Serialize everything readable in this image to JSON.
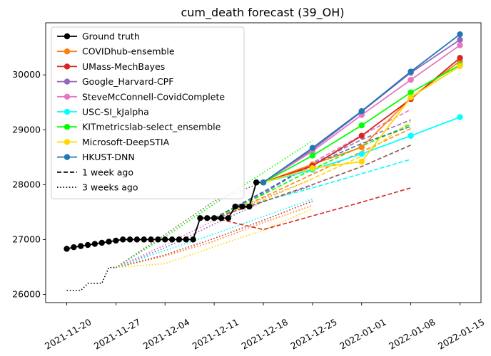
{
  "chart_data": {
    "type": "line",
    "title": "cum_death forecast (39_OH)",
    "xlabel": "",
    "ylabel": "",
    "x_range": [
      "2021-11-17",
      "2022-01-18"
    ],
    "y_range": [
      25850,
      30950
    ],
    "x_ticks": [
      "2021-11-20",
      "2021-11-27",
      "2021-12-04",
      "2021-12-11",
      "2021-12-18",
      "2021-12-25",
      "2022-01-01",
      "2022-01-08",
      "2022-01-15"
    ],
    "y_ticks": [
      26000,
      27000,
      28000,
      29000,
      30000
    ],
    "grid": false,
    "legend_position": "top-left",
    "legend": [
      {
        "label": "Ground truth",
        "color": "#000000",
        "style": "solid",
        "marker": true
      },
      {
        "label": "COVIDhub-ensemble",
        "color": "#ff7f0e",
        "style": "solid",
        "marker": true
      },
      {
        "label": "UMass-MechBayes",
        "color": "#d62728",
        "style": "solid",
        "marker": true
      },
      {
        "label": "Google_Harvard-CPF",
        "color": "#9467bd",
        "style": "solid",
        "marker": true
      },
      {
        "label": "SteveMcConnell-CovidComplete",
        "color": "#e377c2",
        "style": "solid",
        "marker": true
      },
      {
        "label": "USC-SI_kJalpha",
        "color": "#00ffff",
        "style": "solid",
        "marker": true
      },
      {
        "label": "KITmetricslab-select_ensemble",
        "color": "#00ff00",
        "style": "solid",
        "marker": true
      },
      {
        "label": "Microsoft-DeepSTIA",
        "color": "#ffd700",
        "style": "solid",
        "marker": true
      },
      {
        "label": "HKUST-DNN",
        "color": "#1f77b4",
        "style": "solid",
        "marker": true
      },
      {
        "label": "1 week ago",
        "color": "#000000",
        "style": "dashed",
        "marker": false
      },
      {
        "label": "3 weeks ago",
        "color": "#000000",
        "style": "dotted",
        "marker": false
      }
    ],
    "series": [
      {
        "name": "Ground truth",
        "color": "#000000",
        "style": "solid",
        "marker": true,
        "x": [
          "2021-11-20",
          "2021-11-21",
          "2021-11-22",
          "2021-11-23",
          "2021-11-24",
          "2021-11-25",
          "2021-11-26",
          "2021-11-27",
          "2021-11-28",
          "2021-11-29",
          "2021-11-30",
          "2021-12-01",
          "2021-12-02",
          "2021-12-03",
          "2021-12-04",
          "2021-12-05",
          "2021-12-06",
          "2021-12-07",
          "2021-12-08",
          "2021-12-09",
          "2021-12-10",
          "2021-12-11",
          "2021-12-12",
          "2021-12-13",
          "2021-12-14",
          "2021-12-15",
          "2021-12-16",
          "2021-12-17",
          "2021-12-18"
        ],
        "y": [
          26830,
          26860,
          26880,
          26900,
          26920,
          26940,
          26960,
          26980,
          27000,
          27000,
          27000,
          27000,
          27000,
          27000,
          27000,
          27000,
          27000,
          27000,
          27000,
          27390,
          27390,
          27390,
          27390,
          27390,
          27600,
          27600,
          27600,
          28040,
          28040
        ]
      },
      {
        "name": "3 weeks ago",
        "color": "#000000",
        "style": "dotted",
        "marker": false,
        "x": [
          "2021-11-20",
          "2021-11-21",
          "2021-11-22",
          "2021-11-23",
          "2021-11-24",
          "2021-11-25",
          "2021-11-26",
          "2021-11-27"
        ],
        "y": [
          26070,
          26070,
          26070,
          26200,
          26200,
          26200,
          26490,
          26490
        ]
      },
      {
        "name": "COVIDhub-ensemble",
        "color": "#ff7f0e",
        "style": "solid",
        "marker": true,
        "x": [
          "2021-12-18",
          "2021-12-25",
          "2022-01-01",
          "2022-01-08",
          "2022-01-15"
        ],
        "y": [
          28040,
          28370,
          28680,
          29580,
          30250
        ]
      },
      {
        "name": "UMass-MechBayes",
        "color": "#d62728",
        "style": "solid",
        "marker": true,
        "x": [
          "2021-12-18",
          "2021-12-25",
          "2022-01-01",
          "2022-01-08",
          "2022-01-15"
        ],
        "y": [
          28040,
          28340,
          28890,
          29560,
          30310
        ]
      },
      {
        "name": "Google_Harvard-CPF",
        "color": "#9467bd",
        "style": "solid",
        "marker": true,
        "x": [
          "2021-12-18",
          "2021-12-25",
          "2022-01-01",
          "2022-01-08",
          "2022-01-15"
        ],
        "y": [
          28040,
          28640,
          29330,
          30040,
          30640
        ]
      },
      {
        "name": "SteveMcConnell-CovidComplete",
        "color": "#e377c2",
        "style": "solid",
        "marker": true,
        "x": [
          "2021-12-18",
          "2021-12-25",
          "2022-01-01",
          "2022-01-08",
          "2022-01-15"
        ],
        "y": [
          28040,
          28610,
          29270,
          29910,
          30540
        ]
      },
      {
        "name": "USC-SI_kJalpha",
        "color": "#00ffff",
        "style": "solid",
        "marker": true,
        "x": [
          "2021-12-18",
          "2021-12-25",
          "2022-01-01",
          "2022-01-08",
          "2022-01-15"
        ],
        "y": [
          28040,
          28270,
          28560,
          28890,
          29230
        ]
      },
      {
        "name": "KITmetricslab-select_ensemble",
        "color": "#00ff00",
        "style": "solid",
        "marker": true,
        "x": [
          "2021-12-18",
          "2021-12-25",
          "2022-01-01",
          "2022-01-08",
          "2022-01-15"
        ],
        "y": [
          28040,
          28530,
          29080,
          29680,
          30180
        ]
      },
      {
        "name": "Microsoft-DeepSTIA",
        "color": "#ffd700",
        "style": "solid",
        "marker": true,
        "x": [
          "2021-12-18",
          "2021-12-25",
          "2022-01-01",
          "2022-01-08",
          "2022-01-15"
        ],
        "y": [
          28040,
          28300,
          28420,
          29590,
          30160
        ]
      },
      {
        "name": "HKUST-DNN",
        "color": "#1f77b4",
        "style": "solid",
        "marker": true,
        "x": [
          "2021-12-18",
          "2021-12-25",
          "2022-01-01",
          "2022-01-08",
          "2022-01-15"
        ],
        "y": [
          28040,
          28670,
          29340,
          30060,
          30740
        ]
      },
      {
        "name": "COVIDhub-ensemble (1 week ago)",
        "color": "#ff7f0e",
        "style": "dashed",
        "marker": false,
        "x": [
          "2021-12-11",
          "2021-12-18",
          "2021-12-25",
          "2022-01-01",
          "2022-01-08"
        ],
        "y": [
          27390,
          27770,
          28190,
          28600,
          29020
        ]
      },
      {
        "name": "UMass-MechBayes (1 week ago)",
        "color": "#d62728",
        "style": "dashed",
        "marker": false,
        "x": [
          "2021-12-11",
          "2021-12-18",
          "2021-12-25",
          "2022-01-01",
          "2022-01-08"
        ],
        "y": [
          27390,
          27180,
          27430,
          27680,
          27940
        ]
      },
      {
        "name": "Google_Harvard-CPF (1 week ago)",
        "color": "#9467bd",
        "style": "dashed",
        "marker": false,
        "x": [
          "2021-12-11",
          "2021-12-18",
          "2021-12-25",
          "2022-01-01",
          "2022-01-08"
        ],
        "y": [
          27390,
          27840,
          28380,
          28820,
          29180
        ]
      },
      {
        "name": "SteveMcConnell-CovidComplete (1 week ago)",
        "color": "#e377c2",
        "style": "dashed",
        "marker": false,
        "x": [
          "2021-12-11",
          "2021-12-18",
          "2021-12-25",
          "2022-01-01",
          "2022-01-08"
        ],
        "y": [
          27390,
          27860,
          28400,
          28900,
          29370
        ]
      },
      {
        "name": "USC-SI_kJalpha (1 week ago)",
        "color": "#00ffff",
        "style": "dashed",
        "marker": false,
        "x": [
          "2021-12-11",
          "2021-12-18",
          "2021-12-25",
          "2022-01-01",
          "2022-01-08"
        ],
        "y": [
          27390,
          27700,
          27940,
          28200,
          28460
        ]
      },
      {
        "name": "KITmetricslab-select_ensemble (1 week ago)",
        "color": "#00ff00",
        "style": "dashed",
        "marker": false,
        "x": [
          "2021-12-11",
          "2021-12-18",
          "2021-12-25",
          "2022-01-01",
          "2022-01-08"
        ],
        "y": [
          27390,
          27820,
          28280,
          28700,
          29100
        ]
      },
      {
        "name": "Microsoft-DeepSTIA (1 week ago)",
        "color": "#ffd700",
        "style": "dashed",
        "marker": false,
        "x": [
          "2021-12-11",
          "2021-12-18",
          "2021-12-25",
          "2022-01-01",
          "2022-01-08"
        ],
        "y": [
          27390,
          27720,
          28110,
          28520,
          29150
        ]
      },
      {
        "name": "HKUST-DNN (1 week ago)",
        "color": "#1f77b4",
        "style": "dashed",
        "marker": false,
        "x": [
          "2021-12-11",
          "2021-12-18",
          "2021-12-25",
          "2022-01-01",
          "2022-01-08"
        ],
        "y": [
          27390,
          27870,
          28360,
          28750,
          29060
        ]
      },
      {
        "name": "Brown (1 week ago)",
        "color": "#8c564b",
        "style": "dashed",
        "marker": false,
        "x": [
          "2021-12-11",
          "2021-12-18",
          "2021-12-25",
          "2022-01-01",
          "2022-01-08"
        ],
        "y": [
          27390,
          27690,
          28000,
          28330,
          28720
        ]
      },
      {
        "name": "COVIDhub-ensemble (3 weeks ago)",
        "color": "#ff7f0e",
        "style": "dotted",
        "marker": false,
        "x": [
          "2021-11-27",
          "2021-12-04",
          "2021-12-11",
          "2021-12-18",
          "2021-12-25"
        ],
        "y": [
          26490,
          26700,
          26970,
          27310,
          27620
        ]
      },
      {
        "name": "UMass-MechBayes (3 weeks ago)",
        "color": "#d62728",
        "style": "dotted",
        "marker": false,
        "x": [
          "2021-11-27",
          "2021-12-04",
          "2021-12-11",
          "2021-12-18",
          "2021-12-25"
        ],
        "y": [
          26490,
          26720,
          27020,
          27350,
          27700
        ]
      },
      {
        "name": "Google_Harvard-CPF (3 weeks ago)",
        "color": "#9467bd",
        "style": "dotted",
        "marker": false,
        "x": [
          "2021-11-27",
          "2021-12-04",
          "2021-12-11",
          "2021-12-18",
          "2021-12-25"
        ],
        "y": [
          26490,
          26850,
          27280,
          27690,
          27980
        ]
      },
      {
        "name": "SteveMcConnell-CovidComplete (3 weeks ago)",
        "color": "#e377c2",
        "style": "dotted",
        "marker": false,
        "x": [
          "2021-11-27",
          "2021-12-04",
          "2021-12-11",
          "2021-12-18",
          "2021-12-25"
        ],
        "y": [
          26490,
          26900,
          27350,
          27750,
          28100
        ]
      },
      {
        "name": "USC-SI_kJalpha (3 weeks ago)",
        "color": "#00ffff",
        "style": "dotted",
        "marker": false,
        "x": [
          "2021-11-27",
          "2021-12-04",
          "2021-12-11",
          "2021-12-18",
          "2021-12-25"
        ],
        "y": [
          26490,
          26800,
          27100,
          27420,
          27740
        ]
      },
      {
        "name": "KITmetricslab-select_ensemble (3 weeks ago)",
        "color": "#00ff00",
        "style": "dotted",
        "marker": false,
        "x": [
          "2021-11-27",
          "2021-12-04",
          "2021-12-11",
          "2021-12-18",
          "2021-12-25"
        ],
        "y": [
          26490,
          27050,
          27650,
          28220,
          28800
        ]
      },
      {
        "name": "Microsoft-DeepSTIA (3 weeks ago)",
        "color": "#ffd700",
        "style": "dotted",
        "marker": false,
        "x": [
          "2021-11-27",
          "2021-12-04",
          "2021-12-11",
          "2021-12-18",
          "2021-12-25"
        ],
        "y": [
          26490,
          26560,
          26870,
          27170,
          27560
        ]
      },
      {
        "name": "Brown (3 weeks ago)",
        "color": "#8c564b",
        "style": "dotted",
        "marker": false,
        "x": [
          "2021-11-27",
          "2021-12-04",
          "2021-12-11",
          "2021-12-18",
          "2021-12-25"
        ],
        "y": [
          26490,
          27090,
          27700,
          28050,
          28300
        ]
      }
    ]
  }
}
